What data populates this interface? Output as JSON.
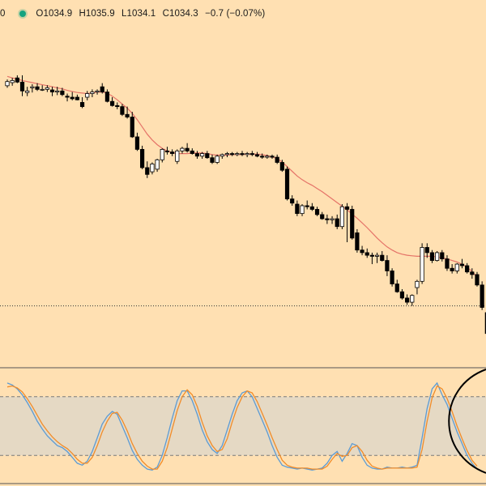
{
  "legend": {
    "prefix": "0",
    "open": "O1034.9",
    "high": "H1035.9",
    "low": "L1034.1",
    "close": "C1034.3",
    "change": "−0.7 (−0.07%)",
    "status_color": "#14a37f"
  },
  "chart_data": [
    {
      "type": "candlestick",
      "title": "",
      "ylim": [
        1000,
        1066
      ],
      "price_line": 1011.4,
      "colors": {
        "up_fill": "#ffffff",
        "down_fill": "#000000",
        "wick": "#000000",
        "ma": "#e57368"
      },
      "series": [
        {
          "name": "",
          "type": "candlestick",
          "values": [
            [
              1053.6,
              1054.8,
              1053.2,
              1054.4
            ],
            [
              1054.2,
              1055.1,
              1053.6,
              1054.6
            ],
            [
              1055.1,
              1055.6,
              1054.1,
              1054.3
            ],
            [
              1054.3,
              1055.6,
              1051.6,
              1052.6
            ],
            [
              1052.3,
              1053.4,
              1051.6,
              1052.6
            ],
            [
              1053.2,
              1053.9,
              1052.3,
              1053.4
            ],
            [
              1053.4,
              1054.1,
              1052.6,
              1052.9
            ],
            [
              1052.9,
              1053.7,
              1052.6,
              1052.9
            ],
            [
              1052.9,
              1053.7,
              1052.4,
              1053.2
            ],
            [
              1052.8,
              1053.4,
              1051.6,
              1052.4
            ],
            [
              1052.4,
              1053.4,
              1051.8,
              1052.6
            ],
            [
              1052.6,
              1053.2,
              1051.6,
              1051.9
            ],
            [
              1051.6,
              1052.1,
              1050.6,
              1051.4
            ],
            [
              1051.4,
              1052.4,
              1050.8,
              1051.1
            ],
            [
              1051.4,
              1051.9,
              1050.8,
              1050.9
            ],
            [
              1050.4,
              1051.4,
              1049.3,
              1049.6
            ],
            [
              1051.4,
              1052.6,
              1050.8,
              1052.1
            ],
            [
              1052.1,
              1052.9,
              1051.4,
              1052.4
            ],
            [
              1052.4,
              1052.9,
              1051.9,
              1052.6
            ],
            [
              1053.4,
              1054.1,
              1052.1,
              1052.4
            ],
            [
              1052.4,
              1052.9,
              1050.4,
              1050.6
            ],
            [
              1050.6,
              1051.4,
              1049.6,
              1049.8
            ],
            [
              1049.8,
              1050.4,
              1049.1,
              1049.6
            ],
            [
              1049.6,
              1050.1,
              1047.8,
              1048.1
            ],
            [
              1048.1,
              1049.6,
              1047.3,
              1047.6
            ],
            [
              1047.6,
              1048.6,
              1043.6,
              1043.8
            ],
            [
              1043.8,
              1044.6,
              1041.1,
              1041.4
            ],
            [
              1041.4,
              1042.1,
              1037.6,
              1037.9
            ],
            [
              1037.9,
              1039.1,
              1035.9,
              1036.6
            ],
            [
              1037.1,
              1038.9,
              1036.6,
              1038.6
            ],
            [
              1037.6,
              1039.6,
              1037.1,
              1039.4
            ],
            [
              1039.4,
              1041.6,
              1038.9,
              1041.4
            ],
            [
              1041.1,
              1041.9,
              1040.4,
              1040.9
            ],
            [
              1040.9,
              1041.4,
              1040.1,
              1040.6
            ],
            [
              1039.1,
              1041.4,
              1038.6,
              1041.1
            ],
            [
              1041.1,
              1041.9,
              1040.6,
              1041.6
            ],
            [
              1041.6,
              1042.6,
              1040.8,
              1041.1
            ],
            [
              1041.1,
              1041.6,
              1040.4,
              1040.6
            ],
            [
              1040.6,
              1041.1,
              1039.6,
              1040.1
            ],
            [
              1040.1,
              1040.9,
              1039.6,
              1040.6
            ],
            [
              1040.6,
              1041.1,
              1039.6,
              1039.8
            ],
            [
              1039.8,
              1040.4,
              1038.6,
              1038.9
            ],
            [
              1038.9,
              1040.4,
              1038.6,
              1040.1
            ],
            [
              1040.1,
              1040.6,
              1039.6,
              1040.4
            ],
            [
              1040.4,
              1040.9,
              1039.9,
              1040.6
            ],
            [
              1040.6,
              1040.9,
              1040.1,
              1040.4
            ],
            [
              1040.4,
              1040.9,
              1040.1,
              1040.6
            ],
            [
              1040.6,
              1041.1,
              1040.1,
              1040.4
            ],
            [
              1040.4,
              1040.9,
              1039.9,
              1040.6
            ],
            [
              1040.6,
              1041.1,
              1040.1,
              1040.4
            ],
            [
              1040.4,
              1040.9,
              1039.9,
              1040.1
            ],
            [
              1040.1,
              1040.6,
              1039.6,
              1039.9
            ],
            [
              1039.9,
              1040.4,
              1039.6,
              1040.1
            ],
            [
              1040.1,
              1040.4,
              1039.6,
              1039.9
            ],
            [
              1039.9,
              1040.4,
              1038.6,
              1038.9
            ],
            [
              1038.9,
              1039.4,
              1037.1,
              1037.4
            ],
            [
              1037.6,
              1038.1,
              1031.6,
              1031.9
            ],
            [
              1031.9,
              1032.6,
              1030.6,
              1031.1
            ],
            [
              1030.9,
              1031.6,
              1028.6,
              1029.1
            ],
            [
              1029.1,
              1030.9,
              1028.6,
              1030.6
            ],
            [
              1030.6,
              1031.6,
              1029.9,
              1030.4
            ],
            [
              1030.4,
              1031.1,
              1029.6,
              1029.9
            ],
            [
              1029.9,
              1030.4,
              1028.6,
              1028.9
            ],
            [
              1028.9,
              1029.4,
              1027.9,
              1028.1
            ],
            [
              1028.1,
              1028.9,
              1027.1,
              1027.9
            ],
            [
              1027.9,
              1028.6,
              1027.1,
              1028.1
            ],
            [
              1028.1,
              1028.9,
              1026.1,
              1026.6
            ],
            [
              1026.6,
              1030.9,
              1026.1,
              1030.4
            ],
            [
              1030.4,
              1031.1,
              1023.6,
              1029.9
            ],
            [
              1029.9,
              1030.6,
              1024.1,
              1024.4
            ],
            [
              1025.4,
              1026.1,
              1021.6,
              1022.1
            ],
            [
              1022.1,
              1022.9,
              1021.1,
              1021.6
            ],
            [
              1021.6,
              1022.4,
              1020.6,
              1021.1
            ],
            [
              1021.1,
              1021.6,
              1019.4,
              1020.9
            ],
            [
              1020.9,
              1021.6,
              1019.6,
              1021.1
            ],
            [
              1021.1,
              1021.9,
              1019.9,
              1020.1
            ],
            [
              1020.1,
              1021.1,
              1017.1,
              1018.1
            ],
            [
              1018.1,
              1018.6,
              1015.1,
              1015.6
            ],
            [
              1015.6,
              1016.4,
              1013.9,
              1014.1
            ],
            [
              1014.1,
              1014.6,
              1012.6,
              1012.9
            ],
            [
              1012.9,
              1013.6,
              1011.6,
              1012.1
            ],
            [
              1012.1,
              1013.6,
              1011.4,
              1013.4
            ],
            [
              1014.9,
              1016.4,
              1013.6,
              1016.1
            ],
            [
              1016.1,
              1023.4,
              1015.6,
              1022.6
            ],
            [
              1022.6,
              1023.4,
              1020.6,
              1021.6
            ],
            [
              1021.6,
              1022.1,
              1019.6,
              1020.1
            ],
            [
              1020.1,
              1021.9,
              1019.9,
              1021.6
            ],
            [
              1021.6,
              1022.1,
              1019.9,
              1020.4
            ],
            [
              1020.4,
              1021.1,
              1018.1,
              1018.6
            ],
            [
              1018.6,
              1019.4,
              1017.6,
              1018.1
            ],
            [
              1018.1,
              1019.6,
              1017.6,
              1019.4
            ],
            [
              1019.4,
              1020.4,
              1018.6,
              1019.1
            ],
            [
              1019.1,
              1019.6,
              1017.6,
              1017.9
            ],
            [
              1017.9,
              1018.6,
              1016.6,
              1017.4
            ],
            [
              1017.4,
              1017.9,
              1015.1,
              1015.4
            ],
            [
              1015.4,
              1016.1,
              1010.6,
              1011.1
            ],
            [
              1010.1,
              1011.4,
              1005.6,
              1006.1
            ]
          ]
        },
        {
          "name": "",
          "type": "line",
          "values": [
            1055.4,
            1055.1,
            1054.9,
            1054.6,
            1054.4,
            1054.2,
            1054.0,
            1053.8,
            1053.6,
            1053.4,
            1053.2,
            1053.0,
            1052.7,
            1052.5,
            1052.3,
            1052.2,
            1052.1,
            1052.2,
            1052.4,
            1052.4,
            1052.2,
            1051.6,
            1050.9,
            1050.1,
            1049.3,
            1048.3,
            1047.1,
            1045.7,
            1044.3,
            1043.2,
            1042.3,
            1041.6,
            1041.1,
            1040.8,
            1040.6,
            1040.6,
            1040.6,
            1040.7,
            1040.7,
            1040.7,
            1040.6,
            1040.4,
            1040.3,
            1040.3,
            1040.3,
            1040.4,
            1040.4,
            1040.4,
            1040.5,
            1040.5,
            1040.5,
            1040.4,
            1040.2,
            1040.0,
            1039.6,
            1039.0,
            1038.1,
            1037.2,
            1036.3,
            1035.6,
            1035.0,
            1034.5,
            1033.9,
            1033.3,
            1032.6,
            1031.9,
            1031.2,
            1030.5,
            1029.8,
            1029.0,
            1028.2,
            1027.3,
            1026.4,
            1025.4,
            1024.4,
            1023.5,
            1022.7,
            1022.1,
            1021.6,
            1021.3,
            1021.1,
            1021.0,
            1020.9,
            1020.9,
            1020.9,
            1020.9,
            1020.8,
            1020.6,
            1020.4,
            1020.1,
            1019.8,
            1019.4,
            1018.8,
            1018.0,
            1016.9
          ]
        }
      ]
    },
    {
      "type": "line",
      "title": "",
      "ylim": [
        -8,
        108
      ],
      "band": [
        20,
        80
      ],
      "colors": {
        "k": "#5b9bd5",
        "d": "#f28c28",
        "band_fill": "#e5d9c4",
        "band_line": "#7a7a7a"
      },
      "series": [
        {
          "name": "",
          "values": [
            94,
            92,
            88,
            82,
            74,
            65,
            55,
            47,
            40,
            35,
            30,
            28,
            24,
            18,
            12,
            10,
            14,
            24,
            38,
            52,
            60,
            65,
            62,
            50,
            38,
            25,
            16,
            10,
            6,
            5,
            8,
            20,
            38,
            58,
            76,
            86,
            86,
            76,
            62,
            46,
            34,
            26,
            22,
            30,
            46,
            62,
            76,
            84,
            86,
            80,
            68,
            56,
            44,
            30,
            18,
            10,
            8,
            7,
            6,
            7,
            6,
            5,
            6,
            7,
            12,
            20,
            24,
            14,
            22,
            32,
            30,
            18,
            10,
            7,
            6,
            6,
            8,
            7,
            7,
            8,
            7,
            8,
            10,
            38,
            68,
            88,
            94,
            82,
            72,
            58,
            44,
            32,
            20,
            12,
            6
          ]
        },
        {
          "name": "",
          "values": [
            90,
            91,
            89,
            85,
            78,
            70,
            61,
            52,
            45,
            39,
            34,
            30,
            27,
            22,
            16,
            12,
            12,
            18,
            30,
            44,
            55,
            63,
            64,
            56,
            45,
            32,
            22,
            14,
            9,
            6,
            6,
            14,
            28,
            47,
            66,
            80,
            87,
            82,
            70,
            54,
            40,
            30,
            24,
            26,
            37,
            54,
            69,
            80,
            86,
            84,
            75,
            63,
            51,
            38,
            26,
            15,
            10,
            8,
            7,
            7,
            7,
            6,
            6,
            6,
            9,
            16,
            22,
            19,
            20,
            28,
            30,
            24,
            15,
            9,
            7,
            6,
            7,
            7,
            7,
            7,
            7,
            7,
            8,
            26,
            55,
            79,
            91,
            88,
            78,
            65,
            50,
            37,
            25,
            15,
            9
          ]
        }
      ]
    }
  ]
}
